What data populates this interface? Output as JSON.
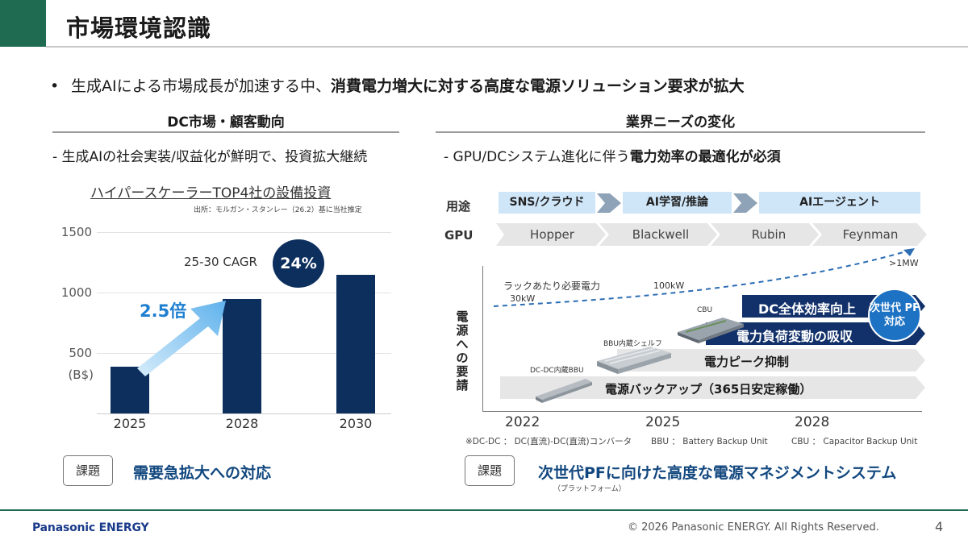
{
  "header": {
    "title": "市場環境認識"
  },
  "bullet": {
    "marker": "•",
    "text_plain": "生成AIによる市場成長が加速する中、",
    "text_bold": "消費電力増大に対する高度な電源ソリューション要求が拡大"
  },
  "left": {
    "heading": "DC市場・顧客動向",
    "subline": "- 生成AIの社会実装/収益化が鮮明で、投資拡大継続",
    "chart_title": "ハイパースケーラーTOP4社の設備投資",
    "chart_source": "出所：モルガン・スタンレー（26.2）基に当社推定",
    "cagr_label": "25-30 CAGR",
    "cagr_value": "24%",
    "multiplier": "2.5倍",
    "issue_label": "課題",
    "issue_text": "需要急拡大への対応"
  },
  "chart_data": {
    "type": "bar",
    "categories": [
      "2025",
      "2028",
      "2030"
    ],
    "values": [
      385,
      945,
      1145
    ],
    "ylabel": "(B$)",
    "yticks": [
      "1500",
      "1000",
      "500"
    ],
    "ylim": [
      0,
      1500
    ],
    "bar_color": "#0c2f5e"
  },
  "right": {
    "heading": "業界ニーズの変化",
    "subline_plain": "- GPU/DCシステム進化に伴う",
    "subline_bold": "電力効率の最適化が必須",
    "row_use_label": "用途",
    "row_gpu_label": "GPU",
    "uses": [
      "SNS/クラウド",
      "AI学習/推論",
      "AIエージェント"
    ],
    "gpus": [
      "Hopper",
      "Blackwell",
      "Rubin",
      "Feynman"
    ],
    "vertical_label": "電源への要請",
    "power_label": "ラックあたり必要電力",
    "power_30": "30kW",
    "power_100": "100kW",
    "power_1mw": ">1MW",
    "cbu_label": "CBU",
    "bbu_shelf_label": "BBU内蔵シェルフ",
    "dcdc_label": "DC-DC内蔵BBU",
    "band_dc": "DC全体効率向上",
    "band_load": "電力負荷変動の吸収",
    "band_peak": "電力ピーク抑制",
    "band_backup": "電源バックアップ（365日安定稼働）",
    "nextgen": "次世代 PF対応",
    "years": [
      "2022",
      "2025",
      "2028"
    ],
    "footnote_dcdc": "※DC-DC ： DC(直流)-DC(直流)コンバータ",
    "footnote_bbu": "BBU ： Battery Backup Unit",
    "footnote_cbu": "CBU ： Capacitor Backup Unit",
    "issue_label": "課題",
    "issue_text": "次世代PFに向けた高度な電源マネジメントシステム",
    "issue_note": "（プラットフォーム）"
  },
  "footer": {
    "logo": "Panasonic ENERGY",
    "copyright": "© 2026 Panasonic ENERGY. All Rights Reserved.",
    "page": "4"
  },
  "colors": {
    "brand_green": "#1f6b52",
    "navy": "#0c2f5e",
    "accent_blue": "#1e7fd0",
    "light_blue": "#cfe6f9",
    "band_grey": "#e6e6e6"
  }
}
